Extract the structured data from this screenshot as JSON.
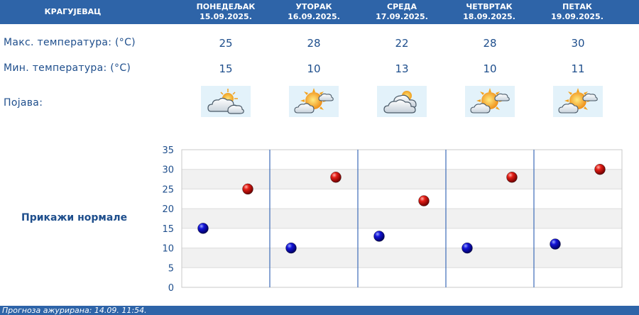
{
  "header": {
    "city": "КРАГУЈЕВАЦ",
    "days": [
      {
        "name": "ПОНЕДЕЉАК",
        "date": "15.09.2025."
      },
      {
        "name": "УТОРАК",
        "date": "16.09.2025."
      },
      {
        "name": "СРЕДА",
        "date": "17.09.2025."
      },
      {
        "name": "ЧЕТВРТАК",
        "date": "18.09.2025."
      },
      {
        "name": "ПЕТАК",
        "date": "19.09.2025."
      }
    ]
  },
  "rows": {
    "max_label": "Макс. температура: (°C)",
    "min_label": "Мин. температура: (°C)",
    "phenomenon_label": "Појава:",
    "max_values": [
      "25",
      "28",
      "22",
      "28",
      "30"
    ],
    "min_values": [
      "15",
      "10",
      "13",
      "10",
      "11"
    ],
    "phenomenon_icons": [
      "partly-cloudy-icon",
      "mostly-sunny-icon",
      "cloudy-icon",
      "mostly-sunny-icon",
      "mostly-sunny-icon"
    ]
  },
  "show_normals": "Прикажи нормале",
  "chart_data": {
    "type": "scatter",
    "categories": [
      "ПОНЕДЕЉАК",
      "УТОРАК",
      "СРЕДА",
      "ЧЕТВРТАК",
      "ПЕТАК"
    ],
    "series": [
      {
        "values": [
          15,
          10,
          13,
          10,
          11
        ],
        "color": "#1010c0"
      },
      {
        "values": [
          25,
          28,
          22,
          28,
          30
        ],
        "color": "#c81010"
      }
    ],
    "ylim": [
      0,
      35
    ],
    "yticks": [
      0,
      5,
      10,
      15,
      20,
      25,
      30,
      35
    ],
    "grid": true
  },
  "footer": {
    "updated": "Прогноза ажурирана:  14.09. 11:54."
  },
  "colors": {
    "header_bg": "#2e64a8",
    "text": "#1e4e8c",
    "max_dot": "#c81010",
    "min_dot": "#1010c0"
  }
}
